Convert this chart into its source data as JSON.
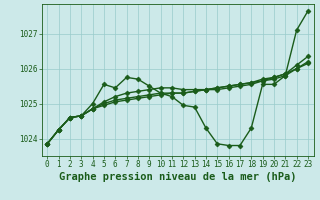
{
  "bg_color": "#cce9e9",
  "grid_color": "#99cccc",
  "line_color": "#1a5c1a",
  "xlabel": "Graphe pression niveau de la mer (hPa)",
  "xlabel_color": "#1a5c1a",
  "ylim": [
    1023.5,
    1027.85
  ],
  "xlim": [
    -0.5,
    23.5
  ],
  "yticks": [
    1024,
    1025,
    1026,
    1027
  ],
  "xticks": [
    0,
    1,
    2,
    3,
    4,
    5,
    6,
    7,
    8,
    9,
    10,
    11,
    12,
    13,
    14,
    15,
    16,
    17,
    18,
    19,
    20,
    21,
    22,
    23
  ],
  "series": [
    [
      1023.85,
      1024.25,
      1024.6,
      1024.65,
      1025.0,
      1025.55,
      1025.45,
      1025.75,
      1025.7,
      1025.5,
      1025.3,
      1025.2,
      1024.95,
      1024.9,
      1024.3,
      1023.85,
      1023.8,
      1023.8,
      1024.3,
      1025.55,
      1025.55,
      1025.8,
      1027.1,
      1027.65
    ],
    [
      1023.85,
      1024.25,
      1024.6,
      1024.65,
      1024.85,
      1024.95,
      1025.05,
      1025.1,
      1025.15,
      1025.2,
      1025.25,
      1025.3,
      1025.3,
      1025.35,
      1025.4,
      1025.45,
      1025.5,
      1025.55,
      1025.6,
      1025.65,
      1025.7,
      1025.8,
      1026.0,
      1026.2
    ],
    [
      1023.85,
      1024.25,
      1024.6,
      1024.65,
      1024.85,
      1025.0,
      1025.1,
      1025.15,
      1025.2,
      1025.25,
      1025.3,
      1025.3,
      1025.3,
      1025.35,
      1025.4,
      1025.45,
      1025.5,
      1025.55,
      1025.6,
      1025.7,
      1025.75,
      1025.85,
      1026.1,
      1026.35
    ],
    [
      1023.85,
      1024.25,
      1024.6,
      1024.65,
      1024.85,
      1025.05,
      1025.2,
      1025.3,
      1025.35,
      1025.4,
      1025.45,
      1025.45,
      1025.4,
      1025.4,
      1025.4,
      1025.4,
      1025.45,
      1025.5,
      1025.55,
      1025.65,
      1025.75,
      1025.85,
      1026.0,
      1026.15
    ]
  ],
  "marker": "D",
  "markersize": 2.5,
  "linewidth": 1.0,
  "tick_fontsize": 5.5,
  "xlabel_fontsize": 7.5,
  "tick_color": "#1a5c1a",
  "fig_width": 3.2,
  "fig_height": 2.0,
  "dpi": 100
}
